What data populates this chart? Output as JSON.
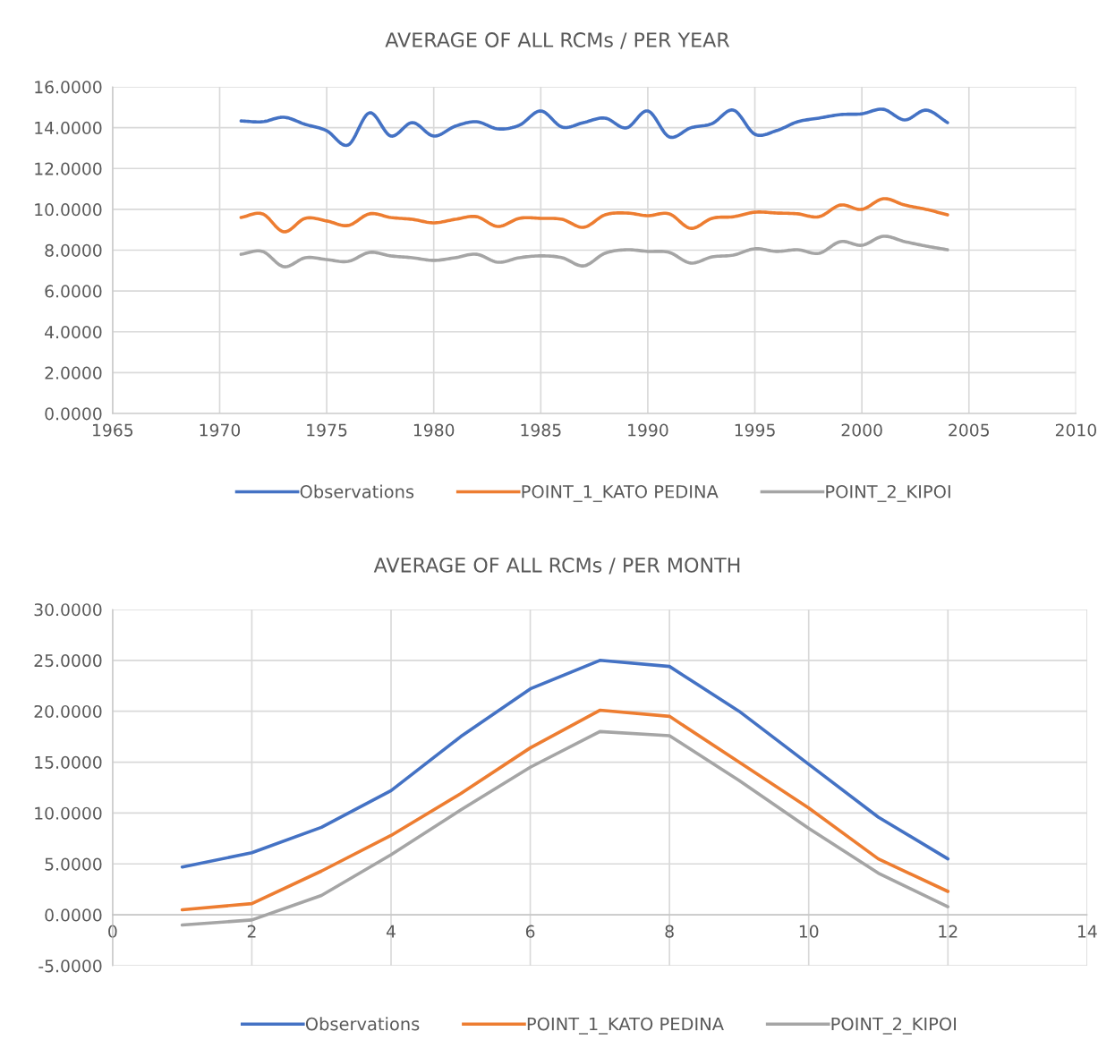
{
  "chart_data": [
    {
      "type": "line",
      "title": "AVERAGE OF ALL RCMs / PER YEAR",
      "x": [
        1971,
        1972,
        1973,
        1974,
        1975,
        1976,
        1977,
        1978,
        1979,
        1980,
        1981,
        1982,
        1983,
        1984,
        1985,
        1986,
        1987,
        1988,
        1989,
        1990,
        1991,
        1992,
        1993,
        1994,
        1995,
        1996,
        1997,
        1998,
        1999,
        2000,
        2001,
        2002,
        2003,
        2004
      ],
      "series": [
        {
          "name": "Observations",
          "color": "#4472c4",
          "values": [
            14.33,
            14.29,
            14.51,
            14.16,
            13.85,
            13.15,
            14.73,
            13.59,
            14.25,
            13.59,
            14.07,
            14.29,
            13.94,
            14.12,
            14.82,
            14.03,
            14.25,
            14.47,
            13.99,
            14.82,
            13.55,
            13.99,
            14.2,
            14.86,
            13.68,
            13.85,
            14.29,
            14.47,
            14.64,
            14.68,
            14.9,
            14.38,
            14.86,
            14.25
          ]
        },
        {
          "name": "POINT_1_KATO PEDINA",
          "color": "#ed7d31",
          "values": [
            9.6,
            9.78,
            8.9,
            9.56,
            9.43,
            9.21,
            9.78,
            9.6,
            9.51,
            9.34,
            9.51,
            9.64,
            9.16,
            9.56,
            9.56,
            9.51,
            9.12,
            9.73,
            9.82,
            9.69,
            9.78,
            9.07,
            9.56,
            9.64,
            9.86,
            9.82,
            9.78,
            9.64,
            10.21,
            10.0,
            10.52,
            10.21,
            10.0,
            9.73
          ]
        },
        {
          "name": "POINT_2_KIPOI",
          "color": "#a5a5a5",
          "values": [
            7.8,
            7.94,
            7.19,
            7.63,
            7.54,
            7.45,
            7.89,
            7.72,
            7.63,
            7.5,
            7.63,
            7.8,
            7.41,
            7.63,
            7.72,
            7.63,
            7.23,
            7.85,
            8.02,
            7.94,
            7.89,
            7.37,
            7.67,
            7.76,
            8.07,
            7.94,
            8.02,
            7.85,
            8.42,
            8.24,
            8.68,
            8.42,
            8.2,
            8.02
          ]
        }
      ],
      "xlim": [
        1965,
        2010
      ],
      "xticks": [
        1965,
        1970,
        1975,
        1980,
        1985,
        1990,
        1995,
        2000,
        2005,
        2010
      ],
      "ylim": [
        0,
        16
      ],
      "yticks": [
        {
          "value": 0,
          "label": "0.0000"
        },
        {
          "value": 2,
          "label": "2.0000"
        },
        {
          "value": 4,
          "label": "4.0000"
        },
        {
          "value": 6,
          "label": "6.0000"
        },
        {
          "value": 8,
          "label": "8.0000"
        },
        {
          "value": 10,
          "label": "10.0000"
        },
        {
          "value": 12,
          "label": "12.0000"
        },
        {
          "value": 14,
          "label": "14.0000"
        },
        {
          "value": 16,
          "label": "16.0000"
        }
      ],
      "grid": true,
      "legend": "bottom",
      "marker": "none",
      "line_style": "solid"
    },
    {
      "type": "line",
      "title": "AVERAGE OF ALL RCMs / PER MONTH",
      "x": [
        1,
        2,
        3,
        4,
        5,
        6,
        7,
        8,
        9,
        10,
        11,
        12
      ],
      "series": [
        {
          "name": "Observations",
          "color": "#4472c4",
          "values": [
            4.7,
            6.1,
            8.6,
            12.2,
            17.5,
            22.2,
            25.0,
            24.4,
            20.0,
            14.8,
            9.6,
            5.5
          ]
        },
        {
          "name": "POINT_1_KATO PEDINA",
          "color": "#ed7d31",
          "values": [
            0.5,
            1.1,
            4.3,
            7.8,
            11.9,
            16.4,
            20.1,
            19.5,
            15.0,
            10.5,
            5.5,
            2.3
          ]
        },
        {
          "name": "POINT_2_KIPOI",
          "color": "#a5a5a5",
          "values": [
            -1.0,
            -0.5,
            1.9,
            5.9,
            10.3,
            14.5,
            18.0,
            17.6,
            13.2,
            8.5,
            4.1,
            0.8
          ]
        }
      ],
      "xlim": [
        0,
        14
      ],
      "xticks": [
        0,
        2,
        4,
        6,
        8,
        10,
        12,
        14
      ],
      "ylim": [
        -5,
        30
      ],
      "yticks": [
        {
          "value": -5,
          "label": "-5.0000"
        },
        {
          "value": 0,
          "label": "0.0000"
        },
        {
          "value": 5,
          "label": "5.0000"
        },
        {
          "value": 10,
          "label": "10.0000"
        },
        {
          "value": 15,
          "label": "15.0000"
        },
        {
          "value": 20,
          "label": "20.0000"
        },
        {
          "value": 25,
          "label": "25.0000"
        },
        {
          "value": 30,
          "label": "30.0000"
        }
      ],
      "grid": true,
      "legend": "bottom",
      "marker": "none",
      "line_style": "solid"
    }
  ]
}
